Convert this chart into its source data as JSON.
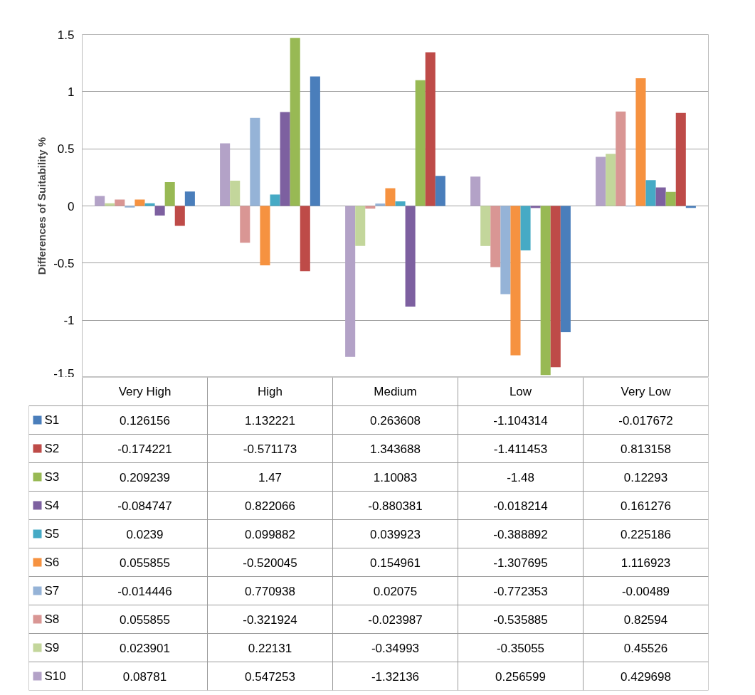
{
  "chart_data": {
    "type": "bar",
    "ylabel": "Differences of Suitability %",
    "categories": [
      "Very High",
      "High",
      "Medium",
      "Low",
      "Very Low"
    ],
    "ylim": [
      -1.5,
      1.5
    ],
    "yticks": [
      -1.5,
      -1,
      -0.5,
      0,
      0.5,
      1,
      1.5
    ],
    "grid": "y",
    "data_labels": true,
    "legend": "bottom",
    "series": [
      {
        "name": "S10",
        "color": "#b3a2c7",
        "values": [
          0.08781,
          0.547253,
          -1.32136,
          0.256599,
          0.429698
        ]
      },
      {
        "name": "S9",
        "color": "#c3d69b",
        "values": [
          0.023901,
          0.22131,
          -0.34993,
          -0.35055,
          0.45526
        ]
      },
      {
        "name": "S8",
        "color": "#d99694",
        "values": [
          0.055855,
          -0.321924,
          -0.023987,
          -0.535885,
          0.82594
        ]
      },
      {
        "name": "S7",
        "color": "#95b3d7",
        "values": [
          -0.014446,
          0.770938,
          0.02075,
          -0.772353,
          -0.00489
        ]
      },
      {
        "name": "S6",
        "color": "#f69240",
        "values": [
          0.055855,
          -0.520045,
          0.154961,
          -1.307695,
          1.116923
        ]
      },
      {
        "name": "S5",
        "color": "#46aac5",
        "values": [
          0.0239,
          0.099882,
          0.039923,
          -0.388892,
          0.225186
        ]
      },
      {
        "name": "S4",
        "color": "#7d60a0",
        "values": [
          -0.084747,
          0.822066,
          -0.880381,
          -0.018214,
          0.161276
        ]
      },
      {
        "name": "S3",
        "color": "#98b954",
        "values": [
          0.209239,
          1.47,
          1.10083,
          -1.48,
          0.12293
        ]
      },
      {
        "name": "S2",
        "color": "#be4b48",
        "values": [
          -0.174221,
          -0.571173,
          1.343688,
          -1.411453,
          0.813158
        ]
      },
      {
        "name": "S1",
        "color": "#4a7ebb",
        "values": [
          0.126156,
          1.132221,
          0.263608,
          -1.104314,
          -0.017672
        ]
      }
    ]
  }
}
